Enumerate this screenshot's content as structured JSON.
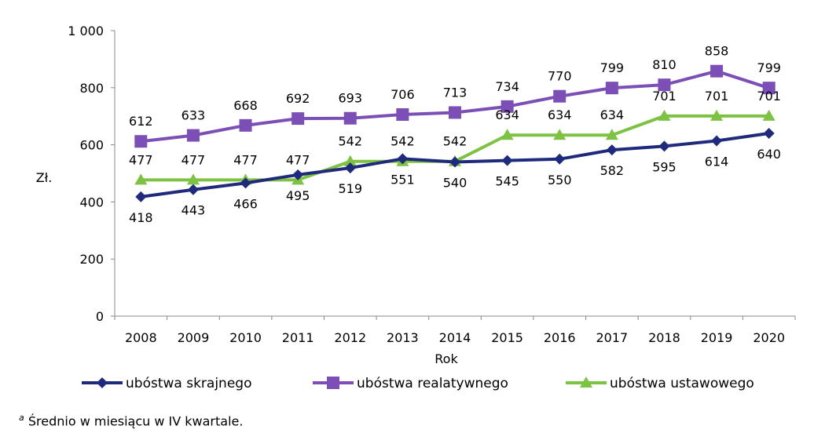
{
  "chart_data": {
    "type": "line",
    "title": "",
    "xlabel": "Rok",
    "ylabel": "Zł.",
    "ylim": [
      0,
      1000
    ],
    "yticks": [
      0,
      200,
      400,
      600,
      800,
      1000
    ],
    "ytick_labels": [
      "0",
      "200",
      "400",
      "600",
      "800",
      "1 000"
    ],
    "grid": false,
    "legend": "bottom",
    "categories": [
      "2008",
      "2009",
      "2010",
      "2011",
      "2012",
      "2013",
      "2014",
      "2015",
      "2016",
      "2017",
      "2018",
      "2019",
      "2020"
    ],
    "series": [
      {
        "name": "ubóstwa skrajnego",
        "color": "#1f2a7c",
        "marker": "diamond",
        "values": [
          418,
          443,
          466,
          495,
          519,
          551,
          540,
          545,
          550,
          582,
          595,
          614,
          640
        ]
      },
      {
        "name": "ubóstwa realatywnego",
        "color": "#7b4fb5",
        "marker": "square",
        "values": [
          612,
          633,
          668,
          692,
          693,
          706,
          713,
          734,
          770,
          799,
          810,
          858,
          799
        ]
      },
      {
        "name": "ubóstwa ustawowego",
        "color": "#7dc242",
        "marker": "triangle",
        "values": [
          477,
          477,
          477,
          477,
          542,
          542,
          542,
          634,
          634,
          634,
          701,
          701,
          701
        ]
      }
    ]
  },
  "footnote": {
    "marker": "a",
    "text": "Średnio w miesiącu w IV kwartale."
  }
}
